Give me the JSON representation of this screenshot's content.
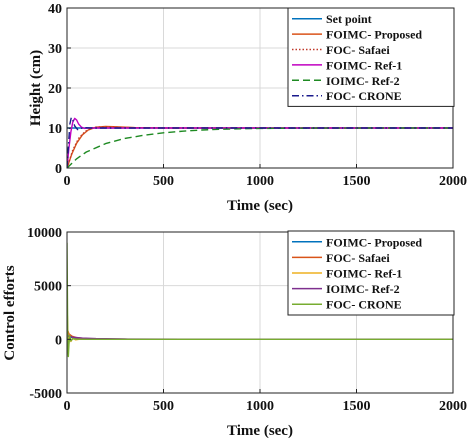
{
  "chart_data": [
    {
      "type": "line",
      "xlabel": "Time (sec)",
      "ylabel": "Height (cm)",
      "xlim": [
        0,
        2000
      ],
      "ylim": [
        0,
        40
      ],
      "xticks": [
        0,
        500,
        1000,
        1500,
        2000
      ],
      "yticks": [
        0,
        10,
        20,
        30,
        40
      ],
      "grid": true,
      "legend_position": "top-right",
      "series": [
        {
          "name": "Set point",
          "color": "#0072BD",
          "dash": "solid",
          "points": [
            [
              0,
              10
            ],
            [
              2000,
              10
            ]
          ]
        },
        {
          "name": "FOIMC- Proposed",
          "color": "#D95319",
          "dash": "solid",
          "points": [
            [
              0,
              0
            ],
            [
              25,
              3.5
            ],
            [
              50,
              6.2
            ],
            [
              80,
              8.3
            ],
            [
              110,
              9.5
            ],
            [
              150,
              10.2
            ],
            [
              200,
              10.4
            ],
            [
              260,
              10.3
            ],
            [
              350,
              10.1
            ],
            [
              500,
              10
            ],
            [
              2000,
              10
            ]
          ]
        },
        {
          "name": "FOC- Safaei",
          "color": "#C0392B",
          "dash": "dotted",
          "points": [
            [
              0,
              0
            ],
            [
              30,
              4.5
            ],
            [
              60,
              7.4
            ],
            [
              95,
              9.2
            ],
            [
              140,
              10.2
            ],
            [
              200,
              10.3
            ],
            [
              300,
              10.1
            ],
            [
              450,
              10
            ],
            [
              2000,
              10
            ]
          ]
        },
        {
          "name": "FOIMC- Ref-1",
          "color": "#C000C0",
          "dash": "solid",
          "points": [
            [
              0,
              0
            ],
            [
              10,
              5
            ],
            [
              20,
              9
            ],
            [
              30,
              11.5
            ],
            [
              40,
              12.4
            ],
            [
              50,
              12
            ],
            [
              60,
              11
            ],
            [
              75,
              10.2
            ],
            [
              90,
              9.9
            ],
            [
              110,
              10
            ],
            [
              2000,
              10
            ]
          ]
        },
        {
          "name": "IOIMC- Ref-2",
          "color": "#1E8A22",
          "dash": "dashed",
          "points": [
            [
              0,
              0
            ],
            [
              50,
              2.3
            ],
            [
              100,
              4.0
            ],
            [
              200,
              6.1
            ],
            [
              300,
              7.4
            ],
            [
              400,
              8.2
            ],
            [
              500,
              8.8
            ],
            [
              600,
              9.2
            ],
            [
              700,
              9.5
            ],
            [
              800,
              9.7
            ],
            [
              900,
              9.8
            ],
            [
              1000,
              9.88
            ],
            [
              1100,
              9.93
            ],
            [
              1200,
              9.96
            ],
            [
              1400,
              9.99
            ],
            [
              1600,
              10
            ],
            [
              2000,
              10
            ]
          ]
        },
        {
          "name": "FOC- CRONE",
          "color": "#1A1A8C",
          "dash": "dashdot",
          "points": [
            [
              0,
              0
            ],
            [
              8,
              6
            ],
            [
              15,
              11
            ],
            [
              22,
              12.6
            ],
            [
              30,
              12
            ],
            [
              40,
              10.5
            ],
            [
              55,
              9.6
            ],
            [
              70,
              9.9
            ],
            [
              90,
              10.1
            ],
            [
              120,
              10
            ],
            [
              2000,
              10
            ]
          ]
        }
      ]
    },
    {
      "type": "line",
      "xlabel": "Time (sec)",
      "ylabel": "Control efforts",
      "xlim": [
        0,
        2000
      ],
      "ylim": [
        -5000,
        10000
      ],
      "xticks": [
        0,
        500,
        1000,
        1500,
        2000
      ],
      "yticks": [
        -5000,
        0,
        5000,
        10000
      ],
      "grid": true,
      "legend_position": "top-right",
      "series": [
        {
          "name": "FOIMC- Proposed",
          "color": "#0072BD",
          "dash": "solid",
          "points": [
            [
              0,
              0
            ],
            [
              3,
              600
            ],
            [
              10,
              350
            ],
            [
              20,
              200
            ],
            [
              40,
              90
            ],
            [
              80,
              40
            ],
            [
              150,
              20
            ],
            [
              300,
              8
            ],
            [
              2000,
              5
            ]
          ]
        },
        {
          "name": "FOC- Safaei",
          "color": "#D95319",
          "dash": "solid",
          "points": [
            [
              0,
              0
            ],
            [
              3,
              900
            ],
            [
              10,
              500
            ],
            [
              25,
              300
            ],
            [
              50,
              150
            ],
            [
              100,
              60
            ],
            [
              200,
              20
            ],
            [
              400,
              8
            ],
            [
              2000,
              5
            ]
          ]
        },
        {
          "name": "FOIMC- Ref-1",
          "color": "#EDB120",
          "dash": "solid",
          "points": [
            [
              0,
              0
            ],
            [
              2,
              2200
            ],
            [
              6,
              -600
            ],
            [
              12,
              400
            ],
            [
              20,
              -200
            ],
            [
              30,
              100
            ],
            [
              45,
              -50
            ],
            [
              70,
              20
            ],
            [
              120,
              10
            ],
            [
              2000,
              5
            ]
          ]
        },
        {
          "name": "IOIMC- Ref-2",
          "color": "#7E2F8E",
          "dash": "solid",
          "points": [
            [
              0,
              0
            ],
            [
              3,
              400
            ],
            [
              10,
              280
            ],
            [
              30,
              200
            ],
            [
              80,
              120
            ],
            [
              150,
              70
            ],
            [
              300,
              30
            ],
            [
              600,
              12
            ],
            [
              2000,
              5
            ]
          ]
        },
        {
          "name": "FOC- CRONE",
          "color": "#77AC30",
          "dash": "solid",
          "points": [
            [
              0,
              9000
            ],
            [
              2,
              4500
            ],
            [
              4,
              -400
            ],
            [
              7,
              -1600
            ],
            [
              10,
              -500
            ],
            [
              14,
              350
            ],
            [
              20,
              -150
            ],
            [
              30,
              60
            ],
            [
              50,
              10
            ],
            [
              100,
              5
            ],
            [
              2000,
              5
            ]
          ]
        }
      ]
    }
  ]
}
